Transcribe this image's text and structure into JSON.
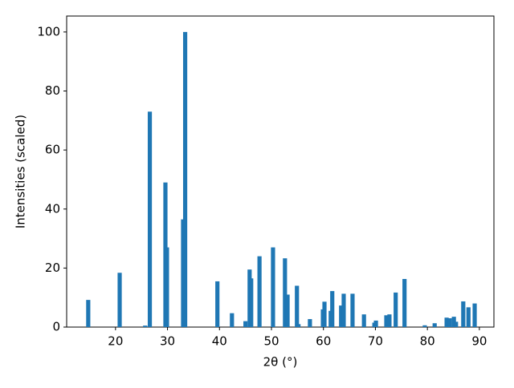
{
  "chart_data": {
    "type": "bar",
    "x_label": "2θ (°)",
    "y_label": "Intensities (scaled)",
    "color": "#1f77b4",
    "x": [
      14.75,
      20.8,
      25.7,
      26.6,
      29.6,
      29.9,
      33.0,
      33.4,
      39.6,
      42.4,
      45.0,
      45.8,
      46.1,
      47.7,
      50.3,
      52.6,
      53.1,
      54.9,
      55.2,
      57.4,
      59.9,
      60.2,
      61.4,
      61.7,
      63.4,
      63.9,
      65.6,
      67.8,
      69.8,
      70.1,
      72.1,
      72.7,
      73.9,
      75.6,
      79.5,
      81.4,
      83.7,
      84.3,
      85.1,
      85.5,
      86.9,
      87.9,
      89.1
    ],
    "values": [
      9.2,
      18.4,
      0.5,
      73,
      49,
      27,
      36.5,
      100,
      15.5,
      4.7,
      2,
      19.5,
      16.5,
      24,
      27,
      23.3,
      11,
      14,
      1,
      2.7,
      6,
      8.6,
      5.5,
      12.2,
      7.3,
      11.3,
      11.3,
      4.3,
      1.5,
      2.2,
      4,
      4.3,
      11.7,
      16.3,
      0.6,
      1.3,
      3.2,
      3,
      3.5,
      1.8,
      8.7,
      6.7,
      8
    ],
    "xlim": [
      10.6,
      92.8
    ],
    "ylim": [
      0,
      105.4
    ],
    "xticks": [
      20,
      30,
      40,
      50,
      60,
      70,
      80,
      90
    ],
    "yticks": [
      0,
      20,
      40,
      60,
      80,
      100
    ]
  }
}
